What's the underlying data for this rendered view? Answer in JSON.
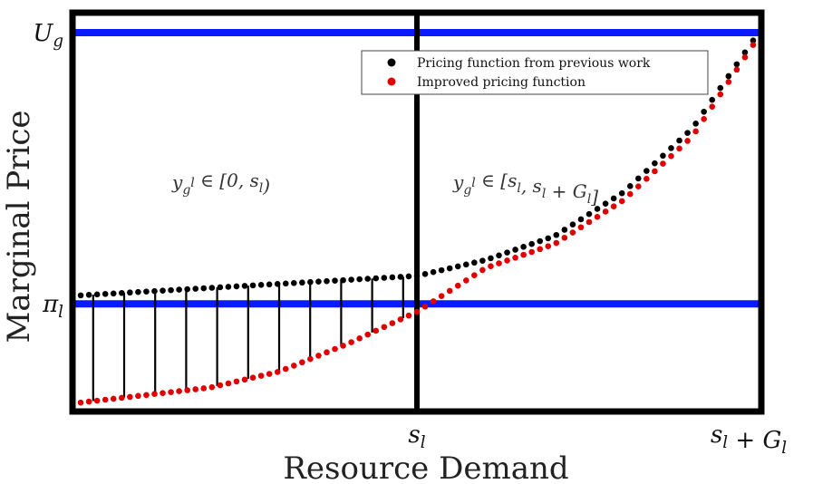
{
  "chart_data": {
    "type": "scatter",
    "title": "",
    "xlabel": "Resource Demand",
    "ylabel": "Marginal Price",
    "x_tick_labels": [
      "s_l",
      "s_l + G_l"
    ],
    "y_tick_labels": [
      "U_g",
      "π_l"
    ],
    "x_range": [
      0,
      2
    ],
    "y_range": [
      0,
      1
    ],
    "reference_lines": [
      {
        "name": "U_g",
        "orientation": "horizontal",
        "value": 0.95,
        "color": "#0a1aff"
      },
      {
        "name": "π_l",
        "orientation": "horizontal",
        "value": 0.27,
        "color": "#0a1aff"
      },
      {
        "name": "s_l",
        "orientation": "vertical",
        "value": 1.0,
        "color": "#000000"
      }
    ],
    "regions": [
      {
        "label": "y_g^l ∈ [0, s_l)",
        "x_range": [
          0,
          1
        ]
      },
      {
        "label": "y_g^l ∈ [s_l, s_l + G_l]",
        "x_range": [
          1,
          2
        ]
      }
    ],
    "legend": {
      "position": "top-right",
      "entries": [
        {
          "label": "Pricing function from previous work",
          "color": "#000000"
        },
        {
          "label": "Improved pricing function",
          "color": "#e00000"
        }
      ]
    },
    "series": [
      {
        "name": "Pricing function from previous work",
        "color": "#000000",
        "function": "exponential",
        "x": [
          0,
          0.2,
          0.4,
          0.6,
          0.8,
          1.0,
          1.2,
          1.4,
          1.6,
          1.8,
          2.0
        ],
        "values": [
          0.29,
          0.3,
          0.31,
          0.32,
          0.33,
          0.34,
          0.38,
          0.44,
          0.55,
          0.71,
          0.96
        ]
      },
      {
        "name": "Improved pricing function",
        "color": "#e00000",
        "function": "convex",
        "x": [
          0,
          0.2,
          0.4,
          0.6,
          0.8,
          1.0,
          1.2,
          1.4,
          1.6,
          1.8,
          2.0
        ],
        "values": [
          0.02,
          0.04,
          0.06,
          0.1,
          0.17,
          0.25,
          0.36,
          0.42,
          0.53,
          0.69,
          0.95
        ]
      }
    ],
    "difference_lines": {
      "x_range": [
        0.06,
        0.96
      ],
      "count": 11,
      "color": "#000000"
    },
    "grid": false
  }
}
